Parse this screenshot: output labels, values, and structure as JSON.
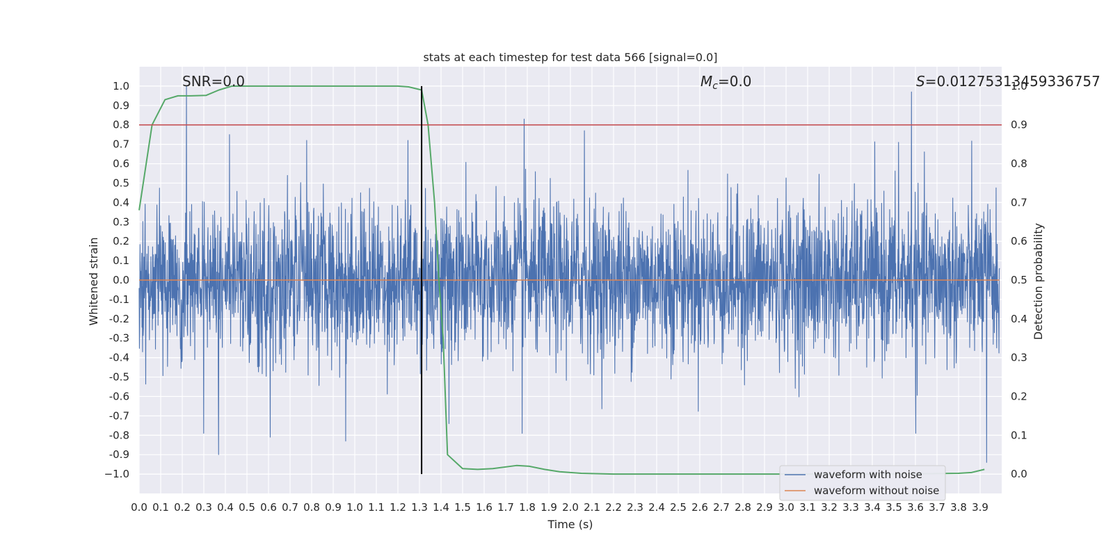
{
  "chart_data": {
    "type": "line",
    "title": "stats at each timestep for test data 566 [signal=0.0]",
    "xlabel": "Time (s)",
    "ylabel": "Whitened strain",
    "y2label": "Detection probability",
    "xlim": [
      0.0,
      4.0
    ],
    "ylim": [
      -1.1,
      1.1
    ],
    "y2lim": [
      -0.05,
      1.05
    ],
    "xticks": [
      "0.0",
      "0.1",
      "0.2",
      "0.3",
      "0.4",
      "0.5",
      "0.6",
      "0.7",
      "0.8",
      "0.9",
      "1.0",
      "1.1",
      "1.2",
      "1.3",
      "1.4",
      "1.5",
      "1.6",
      "1.7",
      "1.8",
      "1.9",
      "2.0",
      "2.1",
      "2.2",
      "2.3",
      "2.4",
      "2.5",
      "2.6",
      "2.7",
      "2.8",
      "2.9",
      "3.0",
      "3.1",
      "3.2",
      "3.3",
      "3.4",
      "3.5",
      "3.6",
      "3.7",
      "3.8",
      "3.9"
    ],
    "yticks": [
      "1.0",
      "0.9",
      "0.8",
      "0.7",
      "0.6",
      "0.5",
      "0.4",
      "0.3",
      "0.2",
      "0.1",
      "0.0",
      "-0.1",
      "-0.2",
      "-0.3",
      "-0.4",
      "-0.5",
      "-0.6",
      "-0.7",
      "-0.8",
      "-0.9",
      "−1.0"
    ],
    "y2ticks": [
      "1.0",
      "0.9",
      "0.8",
      "0.7",
      "0.6",
      "0.5",
      "0.4",
      "0.3",
      "0.2",
      "0.1",
      "0.0"
    ],
    "annotations": {
      "snr": "SNR=0.0",
      "mc_symbol": "M",
      "mc_sub": "c",
      "mc_value": "=0.0",
      "s_symbol": "S",
      "s_value": "=0.01275313459336757"
    },
    "legend": {
      "placement": "lower-right",
      "entries": [
        "waveform with noise",
        "waveform without noise"
      ]
    },
    "threshold_line": {
      "axis": "y2",
      "value": 0.9,
      "color": "#c44e52"
    },
    "vertical_marker": {
      "x": 1.31,
      "y2_from": 0.0,
      "y2_to": 1.0,
      "color": "#000000"
    },
    "series": [
      {
        "name": "waveform with noise",
        "axis": "y",
        "color": "#4c72b0",
        "kind": "noise",
        "amplitude_std": 0.2,
        "spikes": [
          [
            0.22,
            1.0
          ],
          [
            0.37,
            -0.9
          ],
          [
            0.3,
            -0.79
          ],
          [
            0.61,
            -0.81
          ],
          [
            0.96,
            -0.83
          ],
          [
            1.79,
            0.83
          ],
          [
            1.78,
            -0.79
          ],
          [
            2.07,
            0.77
          ],
          [
            3.59,
            0.97
          ],
          [
            3.61,
            -0.79
          ],
          [
            3.94,
            -0.94
          ],
          [
            1.44,
            -0.74
          ],
          [
            1.25,
            0.72
          ],
          [
            3.53,
            0.71
          ],
          [
            0.42,
            0.75
          ]
        ]
      },
      {
        "name": "waveform without noise",
        "axis": "y",
        "color": "#dd8452",
        "kind": "flat",
        "value": 0.0
      },
      {
        "name": "detection probability",
        "axis": "y2",
        "color": "#55a868",
        "x": [
          0.0,
          0.06,
          0.12,
          0.18,
          0.24,
          0.31,
          0.37,
          0.43,
          0.5,
          0.8,
          1.0,
          1.2,
          1.25,
          1.31,
          1.34,
          1.37,
          1.39,
          1.41,
          1.43,
          1.5,
          1.57,
          1.64,
          1.75,
          1.81,
          1.88,
          1.95,
          2.05,
          2.2,
          2.5,
          3.0,
          3.5,
          3.8,
          3.86,
          3.92
        ],
        "y": [
          0.68,
          0.9,
          0.965,
          0.975,
          0.975,
          0.976,
          0.99,
          1.0,
          1.0,
          1.0,
          1.0,
          1.0,
          0.998,
          0.99,
          0.9,
          0.7,
          0.5,
          0.35,
          0.05,
          0.014,
          0.012,
          0.014,
          0.022,
          0.02,
          0.012,
          0.006,
          0.002,
          0.0,
          0.0,
          0.0,
          0.0,
          0.002,
          0.004,
          0.012
        ]
      }
    ]
  }
}
